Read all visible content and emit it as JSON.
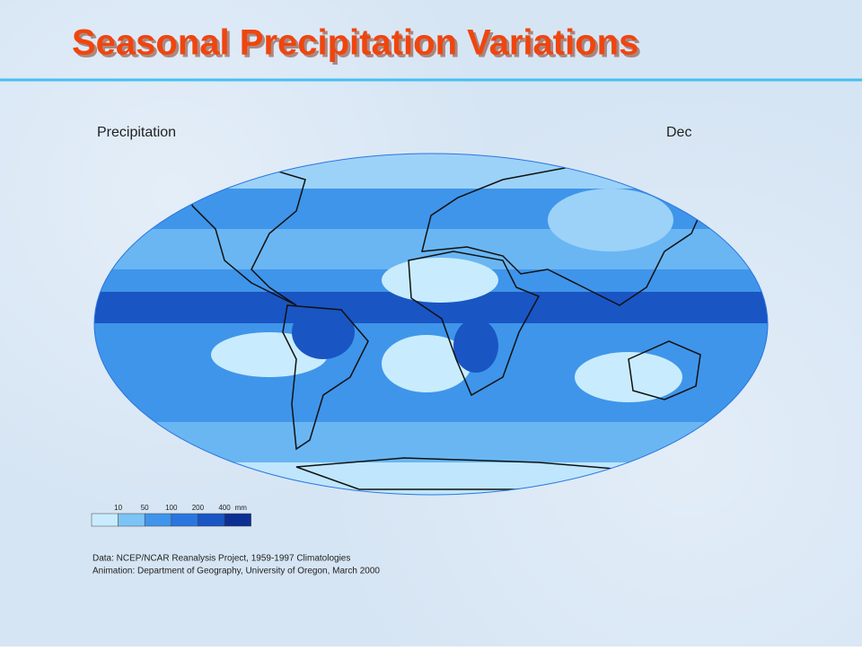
{
  "title": "Seasonal Precipitation Variations",
  "map": {
    "label": "Precipitation",
    "month": "Dec",
    "legend": {
      "breaks": [
        10,
        50,
        100,
        200,
        400
      ],
      "unit": "mm",
      "colors": [
        "#c8ecfd",
        "#7cc4f5",
        "#3f95ea",
        "#2a76df",
        "#1a55c4",
        "#0d2f92"
      ]
    }
  },
  "credits": [
    "Data:  NCEP/NCAR Reanalysis Project, 1959-1997 Climatologies",
    "Animation:  Department of Geography, University of Oregon, March 2000"
  ]
}
